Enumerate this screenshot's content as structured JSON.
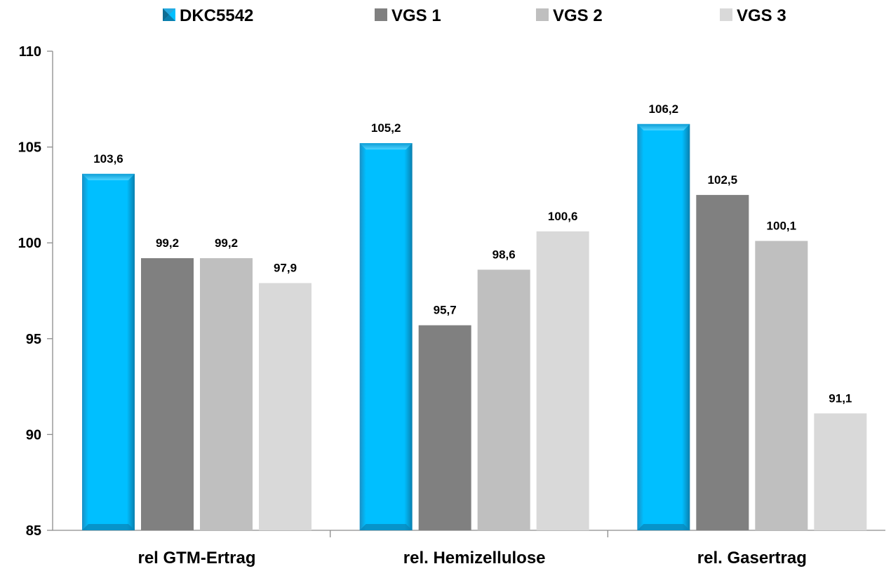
{
  "chart_data": {
    "type": "bar",
    "categories": [
      "rel GTM-Ertrag",
      "rel. Hemizellulose",
      "rel. Gasertrag"
    ],
    "series": [
      {
        "name": "DKC5542",
        "values": [
          103.6,
          105.2,
          106.2
        ],
        "color": "#00BFFF"
      },
      {
        "name": "VGS 1",
        "values": [
          99.2,
          95.7,
          102.5
        ],
        "color": "#808080"
      },
      {
        "name": "VGS 2",
        "values": [
          99.2,
          98.6,
          100.1
        ],
        "color": "#BFBFBF"
      },
      {
        "name": "VGS 3",
        "values": [
          97.9,
          100.6,
          91.1
        ],
        "color": "#D9D9D9"
      }
    ],
    "data_labels": [
      [
        "103,6",
        "105,2",
        "106,2"
      ],
      [
        "99,2",
        "95,7",
        "102,5"
      ],
      [
        "99,2",
        "98,6",
        "100,1"
      ],
      [
        "97,9",
        "100,6",
        "91,1"
      ]
    ],
    "ylim": [
      85,
      110
    ],
    "yticks": [
      85,
      90,
      95,
      100,
      105,
      110
    ],
    "title": "",
    "xlabel": "",
    "ylabel": "",
    "grid": false,
    "legend_position": "top"
  }
}
